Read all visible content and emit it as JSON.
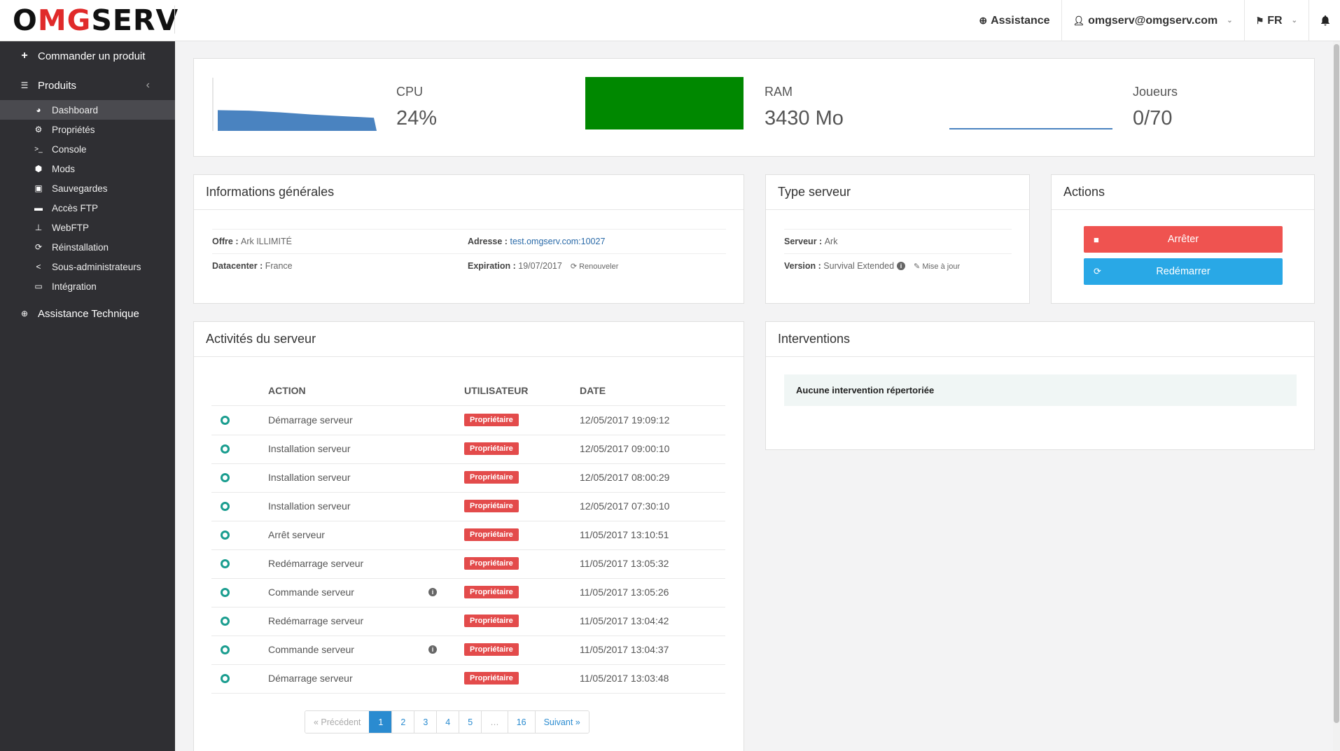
{
  "header": {
    "logo": {
      "first": "O",
      "red": "MG",
      "rest": "SERV"
    },
    "assistance": "Assistance",
    "user": "omgserv@omgserv.com",
    "lang": "FR"
  },
  "sidebar": {
    "order": "Commander un produit",
    "products": "Produits",
    "items": [
      {
        "label": "Dashboard",
        "icon": "dashboard-icon",
        "active": true
      },
      {
        "label": "Propriétés",
        "icon": "gear-icon"
      },
      {
        "label": "Console",
        "icon": "terminal-icon"
      },
      {
        "label": "Mods",
        "icon": "cube-icon"
      },
      {
        "label": "Sauvegardes",
        "icon": "save-icon"
      },
      {
        "label": "Accès FTP",
        "icon": "folder-icon"
      },
      {
        "label": "WebFTP",
        "icon": "sitemap-icon"
      },
      {
        "label": "Réinstallation",
        "icon": "refresh-icon"
      },
      {
        "label": "Sous-administrateurs",
        "icon": "share-icon"
      },
      {
        "label": "Intégration",
        "icon": "monitor-icon"
      }
    ],
    "support": "Assistance Technique"
  },
  "stats": {
    "cpu_label": "CPU",
    "cpu_value": "24%",
    "ram_label": "RAM",
    "ram_value": "3430 Mo",
    "players_label": "Joueurs",
    "players_value": "0/70",
    "cpu_series": [
      0,
      0.38,
      0.37,
      0.34,
      0.3,
      0.27,
      0.24
    ],
    "colors": {
      "cpu": "#4a83c0",
      "ram": "#008800",
      "players": "#4a83c0"
    }
  },
  "general": {
    "title": "Informations générales",
    "offer_label": "Offre :",
    "offer_value": "Ark ILLIMITÉ",
    "address_label": "Adresse :",
    "address_value": "test.omgserv.com:10027",
    "datacenter_label": "Datacenter :",
    "datacenter_value": "France",
    "expiration_label": "Expiration :",
    "expiration_value": "19/07/2017",
    "renew": "Renouveler"
  },
  "server_type": {
    "title": "Type serveur",
    "server_label": "Serveur :",
    "server_value": "Ark",
    "version_label": "Version :",
    "version_value": "Survival Extended",
    "update": "Mise à jour"
  },
  "actions": {
    "title": "Actions",
    "stop": "Arrêter",
    "restart": "Redémarrer"
  },
  "activities": {
    "title": "Activités du serveur",
    "col_action": "ACTION",
    "col_user": "UTILISATEUR",
    "col_date": "DATE",
    "rows": [
      {
        "action": "Démarrage serveur",
        "user": "Propriétaire",
        "date": "12/05/2017 19:09:12",
        "info": false
      },
      {
        "action": "Installation serveur",
        "user": "Propriétaire",
        "date": "12/05/2017 09:00:10",
        "info": false
      },
      {
        "action": "Installation serveur",
        "user": "Propriétaire",
        "date": "12/05/2017 08:00:29",
        "info": false
      },
      {
        "action": "Installation serveur",
        "user": "Propriétaire",
        "date": "12/05/2017 07:30:10",
        "info": false
      },
      {
        "action": "Arrêt serveur",
        "user": "Propriétaire",
        "date": "11/05/2017 13:10:51",
        "info": false
      },
      {
        "action": "Redémarrage serveur",
        "user": "Propriétaire",
        "date": "11/05/2017 13:05:32",
        "info": false
      },
      {
        "action": "Commande serveur",
        "user": "Propriétaire",
        "date": "11/05/2017 13:05:26",
        "info": true
      },
      {
        "action": "Redémarrage serveur",
        "user": "Propriétaire",
        "date": "11/05/2017 13:04:42",
        "info": false
      },
      {
        "action": "Commande serveur",
        "user": "Propriétaire",
        "date": "11/05/2017 13:04:37",
        "info": true
      },
      {
        "action": "Démarrage serveur",
        "user": "Propriétaire",
        "date": "11/05/2017 13:03:48",
        "info": false
      }
    ],
    "pagination": {
      "prev": "« Précédent",
      "pages": [
        "1",
        "2",
        "3",
        "4",
        "5",
        "…",
        "16"
      ],
      "active": "1",
      "next": "Suivant »"
    }
  },
  "interventions": {
    "title": "Interventions",
    "empty": "Aucune intervention répertoriée"
  }
}
